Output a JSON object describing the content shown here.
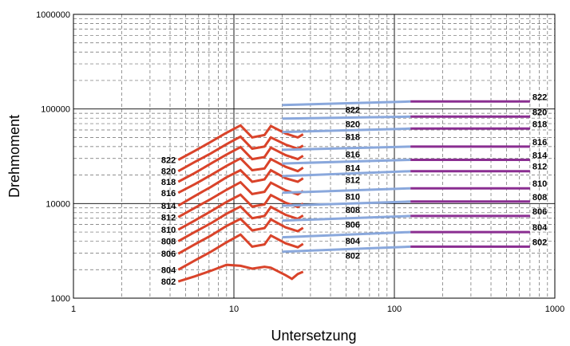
{
  "chart_data": {
    "type": "line",
    "xlabel": "Untersetzung",
    "ylabel": "Drehmoment",
    "x_scale": "log",
    "y_scale": "log",
    "xlim": [
      1,
      1000
    ],
    "ylim": [
      1000,
      1000000
    ],
    "x_ticks": [
      "1",
      "10",
      "100",
      "1000"
    ],
    "y_ticks": [
      "1000",
      "10000",
      "100000",
      "1000000"
    ],
    "grid": true,
    "colors": {
      "low_ratio": "#d9432a",
      "mid_ratio": "#8aa8dc",
      "high_ratio": "#8a2e91"
    },
    "series": [
      {
        "name": "822",
        "left_label": "822",
        "mid_label": "822",
        "right_label": "822",
        "low": [
          [
            4.5,
            29000
          ],
          [
            5.7,
            36000
          ],
          [
            7.2,
            45000
          ],
          [
            9.0,
            56000
          ],
          [
            11.0,
            67000
          ],
          [
            13.0,
            50000
          ],
          [
            15.5,
            53000
          ],
          [
            17.0,
            66000
          ],
          [
            21.0,
            55000
          ],
          [
            25.0,
            50000
          ],
          [
            27.0,
            54000
          ]
        ],
        "mid": [
          [
            20,
            110000
          ],
          [
            126,
            120000
          ]
        ],
        "high": [
          [
            126,
            120000
          ],
          [
            700,
            120000
          ]
        ]
      },
      {
        "name": "820",
        "left_label": "820",
        "mid_label": "820",
        "right_label": "820",
        "low": [
          [
            4.5,
            22000
          ],
          [
            5.7,
            27500
          ],
          [
            7.2,
            34000
          ],
          [
            9.0,
            42500
          ],
          [
            11.0,
            51000
          ],
          [
            13.0,
            38000
          ],
          [
            15.5,
            40000
          ],
          [
            17.0,
            50000
          ],
          [
            21.0,
            42000
          ],
          [
            25.0,
            38000
          ],
          [
            27.0,
            41000
          ]
        ],
        "mid": [
          [
            20,
            79000
          ],
          [
            126,
            83000
          ]
        ],
        "high": [
          [
            126,
            83000
          ],
          [
            700,
            83000
          ]
        ]
      },
      {
        "name": "818",
        "left_label": "818",
        "mid_label": "818",
        "right_label": "818",
        "low": [
          [
            4.5,
            17000
          ],
          [
            5.7,
            21000
          ],
          [
            7.2,
            26500
          ],
          [
            9.0,
            33000
          ],
          [
            11.0,
            39500
          ],
          [
            13.0,
            29500
          ],
          [
            15.5,
            31000
          ],
          [
            17.0,
            39000
          ],
          [
            21.0,
            32500
          ],
          [
            25.0,
            29500
          ],
          [
            27.0,
            32000
          ]
        ],
        "mid": [
          [
            20,
            57000
          ],
          [
            126,
            62000
          ]
        ],
        "high": [
          [
            126,
            62000
          ],
          [
            700,
            62000
          ]
        ]
      },
      {
        "name": "816",
        "left_label": "816",
        "mid_label": "816",
        "right_label": "816",
        "low": [
          [
            4.5,
            13000
          ],
          [
            5.7,
            16000
          ],
          [
            7.2,
            20000
          ],
          [
            9.0,
            25000
          ],
          [
            11.0,
            30000
          ],
          [
            13.0,
            22500
          ],
          [
            15.5,
            23500
          ],
          [
            17.0,
            29500
          ],
          [
            21.0,
            24500
          ],
          [
            25.0,
            22000
          ],
          [
            27.0,
            24000
          ]
        ],
        "mid": [
          [
            20,
            37000
          ],
          [
            126,
            40000
          ]
        ],
        "high": [
          [
            126,
            40000
          ],
          [
            700,
            40000
          ]
        ]
      },
      {
        "name": "814",
        "left_label": "814",
        "mid_label": "814",
        "right_label": "814",
        "low": [
          [
            4.5,
            9500
          ],
          [
            5.7,
            12000
          ],
          [
            7.2,
            15000
          ],
          [
            9.0,
            19000
          ],
          [
            11.0,
            22500
          ],
          [
            13.0,
            17000
          ],
          [
            15.5,
            18000
          ],
          [
            17.0,
            22500
          ],
          [
            21.0,
            18500
          ],
          [
            25.0,
            17000
          ],
          [
            27.0,
            18500
          ]
        ],
        "mid": [
          [
            20,
            26500
          ],
          [
            126,
            29000
          ]
        ],
        "high": [
          [
            126,
            29000
          ],
          [
            700,
            29000
          ]
        ]
      },
      {
        "name": "812",
        "left_label": "812",
        "mid_label": "812",
        "right_label": "812",
        "low": [
          [
            4.5,
            7200
          ],
          [
            5.7,
            9000
          ],
          [
            7.2,
            11200
          ],
          [
            9.0,
            14000
          ],
          [
            11.0,
            16800
          ],
          [
            13.0,
            12600
          ],
          [
            15.5,
            13300
          ],
          [
            17.0,
            16600
          ],
          [
            21.0,
            13800
          ],
          [
            25.0,
            12500
          ],
          [
            27.0,
            13600
          ]
        ],
        "mid": [
          [
            20,
            19500
          ],
          [
            126,
            22000
          ]
        ],
        "high": [
          [
            126,
            22000
          ],
          [
            700,
            22000
          ]
        ]
      },
      {
        "name": "810",
        "left_label": "810",
        "mid_label": "810",
        "right_label": "810",
        "low": [
          [
            4.5,
            5300
          ],
          [
            5.7,
            6600
          ],
          [
            7.2,
            8300
          ],
          [
            9.0,
            10400
          ],
          [
            11.0,
            12400
          ],
          [
            13.0,
            9300
          ],
          [
            15.5,
            9800
          ],
          [
            17.0,
            12300
          ],
          [
            21.0,
            10200
          ],
          [
            25.0,
            9200
          ],
          [
            27.0,
            10000
          ]
        ],
        "mid": [
          [
            20,
            13000
          ],
          [
            126,
            14500
          ]
        ],
        "high": [
          [
            126,
            14500
          ],
          [
            700,
            14500
          ]
        ]
      },
      {
        "name": "808",
        "left_label": "808",
        "mid_label": "808",
        "right_label": "808",
        "low": [
          [
            4.5,
            4000
          ],
          [
            5.7,
            5000
          ],
          [
            7.2,
            6200
          ],
          [
            9.0,
            7800
          ],
          [
            11.0,
            9300
          ],
          [
            13.0,
            7000
          ],
          [
            15.5,
            7400
          ],
          [
            17.0,
            9200
          ],
          [
            21.0,
            7600
          ],
          [
            25.0,
            6900
          ],
          [
            27.0,
            7500
          ]
        ],
        "mid": [
          [
            20,
            9500
          ],
          [
            126,
            10500
          ]
        ],
        "high": [
          [
            126,
            10500
          ],
          [
            700,
            10500
          ]
        ]
      },
      {
        "name": "806",
        "left_label": "806",
        "mid_label": "806",
        "right_label": "806",
        "low": [
          [
            4.5,
            2950
          ],
          [
            5.7,
            3700
          ],
          [
            7.2,
            4600
          ],
          [
            9.0,
            5800
          ],
          [
            11.0,
            6900
          ],
          [
            13.0,
            5200
          ],
          [
            15.5,
            5500
          ],
          [
            17.0,
            6800
          ],
          [
            21.0,
            5600
          ],
          [
            25.0,
            5100
          ],
          [
            27.0,
            5550
          ]
        ],
        "mid": [
          [
            20,
            6600
          ],
          [
            126,
            7400
          ]
        ],
        "high": [
          [
            126,
            7400
          ],
          [
            700,
            7400
          ]
        ]
      },
      {
        "name": "804",
        "left_label": "804",
        "mid_label": "804",
        "right_label": "804",
        "low": [
          [
            4.5,
            2000
          ],
          [
            5.7,
            2500
          ],
          [
            7.2,
            3100
          ],
          [
            9.0,
            3900
          ],
          [
            11.0,
            4700
          ],
          [
            13.0,
            3500
          ],
          [
            15.5,
            3700
          ],
          [
            17.0,
            4600
          ],
          [
            21.0,
            3800
          ],
          [
            25.0,
            3450
          ],
          [
            27.0,
            3750
          ]
        ],
        "mid": [
          [
            20,
            4400
          ],
          [
            126,
            5000
          ]
        ],
        "high": [
          [
            126,
            5000
          ],
          [
            700,
            5000
          ]
        ]
      },
      {
        "name": "802",
        "left_label": "802",
        "mid_label": "802",
        "right_label": "802",
        "low": [
          [
            4.5,
            1500
          ],
          [
            5.7,
            1700
          ],
          [
            7.2,
            1950
          ],
          [
            9.0,
            2250
          ],
          [
            11.0,
            2200
          ],
          [
            13.0,
            2050
          ],
          [
            15.5,
            2150
          ],
          [
            17.0,
            2100
          ],
          [
            21.0,
            1750
          ],
          [
            23.0,
            1600
          ],
          [
            25.0,
            1800
          ],
          [
            27.0,
            1900
          ]
        ],
        "mid": [
          [
            20,
            3100
          ],
          [
            126,
            3500
          ]
        ],
        "high": [
          [
            126,
            3500
          ],
          [
            700,
            3500
          ]
        ]
      }
    ]
  }
}
